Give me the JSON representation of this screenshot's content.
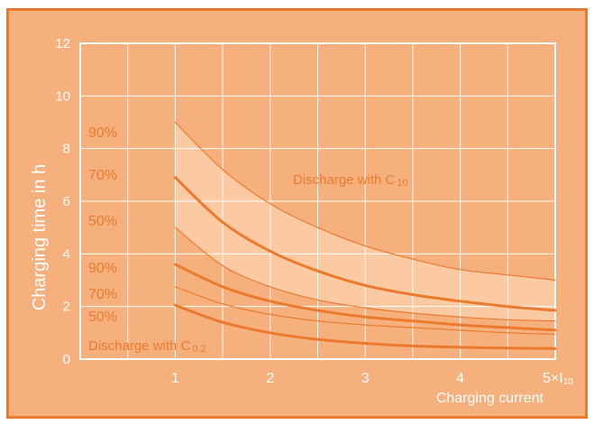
{
  "chart_data": {
    "type": "line",
    "title": "",
    "ylabel": "Charging time in h",
    "xlabel": "Charging current",
    "xlim": [
      0,
      5
    ],
    "ylim": [
      0,
      12
    ],
    "x_ticks": [
      {
        "value": 1,
        "label": "1"
      },
      {
        "value": 2,
        "label": "2"
      },
      {
        "value": 3,
        "label": "3"
      },
      {
        "value": 4,
        "label": "4"
      },
      {
        "value": 5,
        "label": "5×I10"
      }
    ],
    "y_ticks": [
      {
        "value": 0,
        "label": "0"
      },
      {
        "value": 2,
        "label": "2"
      },
      {
        "value": 4,
        "label": "4"
      },
      {
        "value": 6,
        "label": "6"
      },
      {
        "value": 8,
        "label": "8"
      },
      {
        "value": 10,
        "label": "10"
      },
      {
        "value": 12,
        "label": "12"
      }
    ],
    "grid": true,
    "annotations": [
      {
        "text": "Discharge with C",
        "sub": "10",
        "x": 2.5,
        "y": 6.8
      },
      {
        "text": "Discharge with C",
        "sub": "0.2",
        "x": 0.18,
        "y": 0.45
      }
    ],
    "series": [
      {
        "name": "90%",
        "group": "C10",
        "weight": "thin",
        "x": [
          1,
          1.5,
          2,
          2.5,
          3,
          3.5,
          4,
          4.5,
          5
        ],
        "y": [
          9.0,
          7.2,
          5.9,
          5.0,
          4.3,
          3.8,
          3.4,
          3.2,
          3.0
        ]
      },
      {
        "name": "70%",
        "group": "C10",
        "weight": "thick",
        "x": [
          1,
          1.5,
          2,
          2.5,
          3,
          3.5,
          4,
          4.5,
          5
        ],
        "y": [
          6.9,
          5.2,
          4.1,
          3.35,
          2.8,
          2.45,
          2.2,
          2.0,
          1.85
        ]
      },
      {
        "name": "50%",
        "group": "C10",
        "weight": "thin",
        "x": [
          1,
          1.5,
          2,
          2.5,
          3,
          3.5,
          4,
          4.5,
          5
        ],
        "y": [
          5.0,
          3.55,
          2.75,
          2.25,
          1.95,
          1.75,
          1.6,
          1.5,
          1.45
        ]
      },
      {
        "name": "90%",
        "group": "C0.2",
        "weight": "thick",
        "x": [
          1,
          1.5,
          2,
          2.5,
          3,
          3.5,
          4,
          4.5,
          5
        ],
        "y": [
          3.6,
          2.75,
          2.2,
          1.85,
          1.6,
          1.45,
          1.3,
          1.2,
          1.1
        ]
      },
      {
        "name": "70%",
        "group": "C0.2",
        "weight": "thin",
        "x": [
          1,
          1.5,
          2,
          2.5,
          3,
          3.5,
          4,
          4.5,
          5
        ],
        "y": [
          2.75,
          2.1,
          1.7,
          1.45,
          1.3,
          1.2,
          1.1,
          1.0,
          0.95
        ]
      },
      {
        "name": "50%",
        "group": "C0.2",
        "weight": "thick",
        "x": [
          1,
          1.5,
          2,
          2.5,
          3,
          3.5,
          4,
          4.5,
          5
        ],
        "y": [
          2.05,
          1.4,
          1.0,
          0.75,
          0.6,
          0.5,
          0.45,
          0.42,
          0.4
        ]
      }
    ],
    "colors": {
      "background": "#f6b07d",
      "band": "#fbc9a2",
      "line": "#ec7a2e",
      "grid": "#ffffff",
      "text": "#ffffff",
      "frame": "#ec7a2e"
    }
  }
}
